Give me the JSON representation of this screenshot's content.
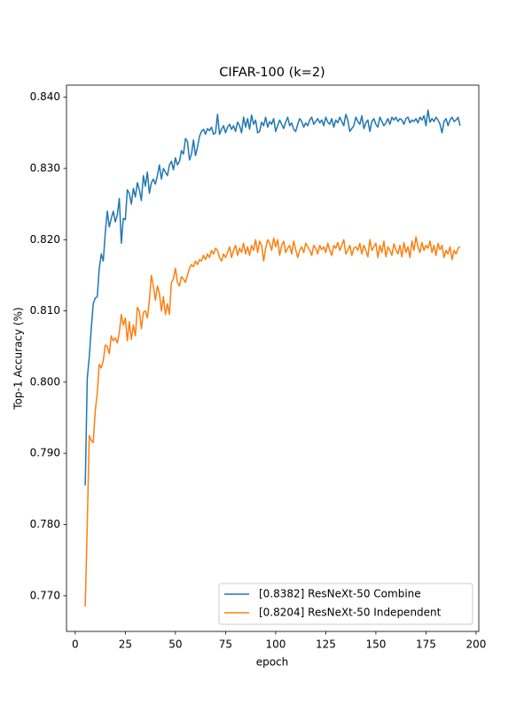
{
  "chart_data": {
    "type": "line",
    "title": "CIFAR-100 (k=2)",
    "xlabel": "epoch",
    "ylabel": "Top-1 Accuracy (%)",
    "x": [
      5,
      6,
      7,
      8,
      9,
      10,
      11,
      12,
      13,
      14,
      15,
      16,
      17,
      18,
      19,
      20,
      21,
      22,
      23,
      24,
      25,
      26,
      27,
      28,
      29,
      30,
      31,
      32,
      33,
      34,
      35,
      36,
      37,
      38,
      39,
      40,
      41,
      42,
      43,
      44,
      45,
      46,
      47,
      48,
      49,
      50,
      51,
      52,
      53,
      54,
      55,
      56,
      57,
      58,
      59,
      60,
      61,
      62,
      63,
      64,
      65,
      66,
      67,
      68,
      69,
      70,
      71,
      72,
      73,
      74,
      75,
      76,
      77,
      78,
      79,
      80,
      81,
      82,
      83,
      84,
      85,
      86,
      87,
      88,
      89,
      90,
      91,
      92,
      93,
      94,
      95,
      96,
      97,
      98,
      99,
      100,
      101,
      102,
      103,
      104,
      105,
      106,
      107,
      108,
      109,
      110,
      111,
      112,
      113,
      114,
      115,
      116,
      117,
      118,
      119,
      120,
      121,
      122,
      123,
      124,
      125,
      126,
      127,
      128,
      129,
      130,
      131,
      132,
      133,
      134,
      135,
      136,
      137,
      138,
      139,
      140,
      141,
      142,
      143,
      144,
      145,
      146,
      147,
      148,
      149,
      150,
      151,
      152,
      153,
      154,
      155,
      156,
      157,
      158,
      159,
      160,
      161,
      162,
      163,
      164,
      165,
      166,
      167,
      168,
      169,
      170,
      171,
      172,
      173,
      174,
      175,
      176,
      177,
      178,
      179,
      180,
      181,
      182,
      183,
      184,
      185,
      186,
      187,
      188,
      189,
      190,
      191,
      192
    ],
    "series": [
      {
        "name": "[0.8382] ResNeXt-50 Combine",
        "color": "#1f77b4",
        "values": [
          0.7855,
          0.8005,
          0.8035,
          0.8075,
          0.811,
          0.8118,
          0.812,
          0.816,
          0.818,
          0.817,
          0.821,
          0.824,
          0.8218,
          0.823,
          0.824,
          0.8225,
          0.8235,
          0.8258,
          0.8195,
          0.823,
          0.8228,
          0.827,
          0.8265,
          0.825,
          0.8272,
          0.826,
          0.828,
          0.827,
          0.8255,
          0.829,
          0.8275,
          0.8295,
          0.8265,
          0.828,
          0.8285,
          0.8278,
          0.829,
          0.8305,
          0.8285,
          0.83,
          0.8295,
          0.829,
          0.8305,
          0.831,
          0.8298,
          0.8315,
          0.8305,
          0.831,
          0.8325,
          0.832,
          0.8342,
          0.8338,
          0.8312,
          0.832,
          0.834,
          0.8318,
          0.833,
          0.8345,
          0.8352,
          0.8355,
          0.8348,
          0.8356,
          0.8353,
          0.8358,
          0.8348,
          0.835,
          0.8376,
          0.8348,
          0.8355,
          0.836,
          0.835,
          0.8358,
          0.8362,
          0.8355,
          0.836,
          0.8352,
          0.8365,
          0.836,
          0.835,
          0.8372,
          0.8358,
          0.837,
          0.8355,
          0.8375,
          0.8362,
          0.8368,
          0.835,
          0.8352,
          0.8365,
          0.836,
          0.8372,
          0.8358,
          0.8366,
          0.8362,
          0.837,
          0.8352,
          0.836,
          0.8368,
          0.8362,
          0.8356,
          0.8365,
          0.8372,
          0.836,
          0.8364,
          0.8355,
          0.8352,
          0.8362,
          0.837,
          0.8366,
          0.8358,
          0.8364,
          0.836,
          0.8368,
          0.8372,
          0.8362,
          0.8366,
          0.837,
          0.8364,
          0.8368,
          0.836,
          0.8372,
          0.8365,
          0.8362,
          0.837,
          0.8358,
          0.8368,
          0.8364,
          0.8372,
          0.8366,
          0.836,
          0.8376,
          0.8368,
          0.8352,
          0.8356,
          0.836,
          0.8372,
          0.8366,
          0.8362,
          0.8374,
          0.8356,
          0.8364,
          0.8368,
          0.8352,
          0.8366,
          0.837,
          0.8362,
          0.8358,
          0.8372,
          0.8366,
          0.836,
          0.8364,
          0.837,
          0.8362,
          0.8372,
          0.8368,
          0.8372,
          0.8366,
          0.837,
          0.8368,
          0.8362,
          0.837,
          0.8372,
          0.8364,
          0.8368,
          0.8366,
          0.837,
          0.8364,
          0.8372,
          0.8368,
          0.8374,
          0.836,
          0.8382,
          0.8365,
          0.837,
          0.8366,
          0.8372,
          0.8368,
          0.8362,
          0.835,
          0.8366,
          0.837,
          0.836,
          0.8368,
          0.8372,
          0.8366,
          0.8368,
          0.8372,
          0.836
        ]
      },
      {
        "name": "[0.8204] ResNeXt-50 Independent",
        "color": "#ff7f0e",
        "values": [
          0.7685,
          0.78,
          0.7925,
          0.7918,
          0.7915,
          0.796,
          0.7985,
          0.8025,
          0.802,
          0.803,
          0.8052,
          0.805,
          0.804,
          0.8065,
          0.8058,
          0.8062,
          0.8055,
          0.807,
          0.8095,
          0.808,
          0.809,
          0.8058,
          0.8085,
          0.806,
          0.808,
          0.8065,
          0.8105,
          0.81,
          0.8075,
          0.8098,
          0.81,
          0.809,
          0.8115,
          0.815,
          0.8135,
          0.8115,
          0.8135,
          0.8125,
          0.81,
          0.812,
          0.8095,
          0.811,
          0.8095,
          0.814,
          0.8145,
          0.816,
          0.814,
          0.8135,
          0.8148,
          0.8145,
          0.814,
          0.815,
          0.816,
          0.8165,
          0.8162,
          0.817,
          0.8165,
          0.8172,
          0.817,
          0.8178,
          0.8172,
          0.818,
          0.8175,
          0.8185,
          0.818,
          0.8188,
          0.8185,
          0.8175,
          0.817,
          0.818,
          0.8175,
          0.8182,
          0.819,
          0.8175,
          0.8185,
          0.8192,
          0.8178,
          0.8188,
          0.8182,
          0.8195,
          0.818,
          0.819,
          0.8178,
          0.8192,
          0.8185,
          0.82,
          0.8182,
          0.8198,
          0.8192,
          0.817,
          0.8188,
          0.82,
          0.8195,
          0.8185,
          0.8202,
          0.819,
          0.82,
          0.8178,
          0.8192,
          0.8198,
          0.8182,
          0.8188,
          0.8192,
          0.818,
          0.8198,
          0.8186,
          0.8175,
          0.8185,
          0.819,
          0.8182,
          0.8195,
          0.819,
          0.8185,
          0.8178,
          0.8192,
          0.8188,
          0.818,
          0.8192,
          0.8186,
          0.819,
          0.8182,
          0.8195,
          0.8185,
          0.8178,
          0.8192,
          0.8188,
          0.8196,
          0.8185,
          0.8192,
          0.82,
          0.818,
          0.8185,
          0.8192,
          0.8178,
          0.8188,
          0.819,
          0.8185,
          0.8195,
          0.818,
          0.8192,
          0.8185,
          0.8176,
          0.82,
          0.8185,
          0.819,
          0.8195,
          0.8175,
          0.8192,
          0.8182,
          0.8198,
          0.8176,
          0.819,
          0.8185,
          0.8178,
          0.8194,
          0.8186,
          0.818,
          0.8192,
          0.8176,
          0.8196,
          0.8182,
          0.819,
          0.8175,
          0.8198,
          0.8185,
          0.8204,
          0.819,
          0.8182,
          0.8196,
          0.8185,
          0.8192,
          0.8188,
          0.8198,
          0.8182,
          0.8192,
          0.8178,
          0.8195,
          0.8186,
          0.8192,
          0.8175,
          0.8185,
          0.818,
          0.819,
          0.8172,
          0.8185,
          0.818,
          0.8188,
          0.819
        ]
      }
    ],
    "xlim": [
      -4.35,
      201.35
    ],
    "xticks": [
      0,
      25,
      50,
      75,
      100,
      125,
      150,
      175,
      200
    ],
    "ylim": [
      0.765,
      0.8417
    ],
    "yticks": [
      {
        "value": 0.77,
        "label": "0.770"
      },
      {
        "value": 0.78,
        "label": "0.780"
      },
      {
        "value": 0.79,
        "label": "0.790"
      },
      {
        "value": 0.8,
        "label": "0.800"
      },
      {
        "value": 0.81,
        "label": "0.810"
      },
      {
        "value": 0.82,
        "label": "0.820"
      },
      {
        "value": 0.83,
        "label": "0.830"
      },
      {
        "value": 0.84,
        "label": "0.840"
      }
    ],
    "legend": "lower right",
    "grid": false
  }
}
